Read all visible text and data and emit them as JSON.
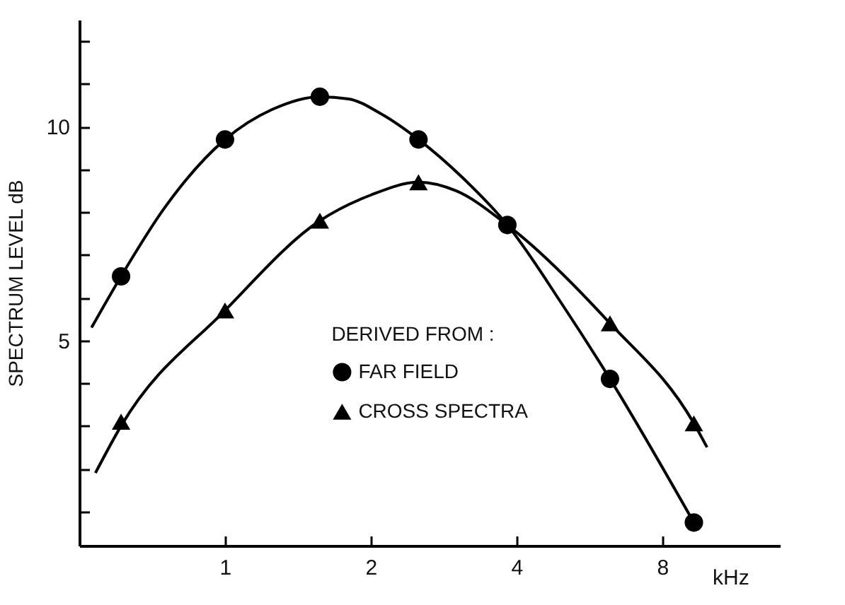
{
  "chart_data": {
    "type": "line",
    "xlabel": "kHz",
    "ylabel": "SPECTRUM LEVEL dB",
    "legend_title": "DERIVED FROM :",
    "legend": "bottom",
    "log": "x",
    "grid": false,
    "xlim": [
      0.5,
      14
    ],
    "xticks": [
      1,
      2,
      4,
      8
    ],
    "ylim": [
      0.2,
      12.5
    ],
    "yticks": [
      {
        "value": 1,
        "label": null
      },
      {
        "value": 2,
        "label": null
      },
      {
        "value": 3,
        "label": null
      },
      {
        "value": 4,
        "label": null
      },
      5,
      {
        "value": 6,
        "label": null
      },
      {
        "value": 7,
        "label": null
      },
      {
        "value": 8,
        "label": null
      },
      {
        "value": 9,
        "label": null
      },
      10,
      {
        "value": 11,
        "label": null
      },
      {
        "value": 12,
        "label": null
      }
    ],
    "series": [
      {
        "color": "#000000",
        "marker": "none",
        "x": [
          0.53,
          0.61,
          0.75,
          1,
          1.25,
          1.57,
          1.8,
          2.1,
          2.51,
          3.1,
          3.83,
          5,
          6.24,
          9.3
        ],
        "values": [
          5.3,
          6.5,
          8.1,
          9.7,
          10.4,
          10.7,
          10.65,
          10.3,
          9.7,
          8.8,
          7.7,
          5.8,
          4.1,
          0.74
        ]
      },
      {
        "color": "#000000",
        "marker": "none",
        "x": [
          0.54,
          0.61,
          1,
          1.57,
          2,
          2.51,
          3,
          3.83,
          6.24,
          9.3,
          9.9
        ],
        "values": [
          1.9,
          3.0,
          5.7,
          7.8,
          8.4,
          8.7,
          8.5,
          7.7,
          5.4,
          3.06,
          2.5
        ]
      },
      {
        "type": "scatter",
        "name": "FAR FIELD",
        "color": "#000000",
        "marker": "circle",
        "x": [
          0.61,
          1,
          1.57,
          2.51,
          3.83,
          6.24,
          9.3
        ],
        "values": [
          6.5,
          9.7,
          10.7,
          9.7,
          7.7,
          4.1,
          0.74
        ]
      },
      {
        "type": "scatter",
        "name": "CROSS SPECTRA",
        "color": "#000000",
        "marker": "triangle",
        "x": [
          0.61,
          1,
          1.57,
          2.51,
          3.83,
          6.24,
          9.3
        ],
        "values": [
          3.1,
          5.7,
          7.8,
          8.7,
          null,
          5.4,
          3.06
        ]
      }
    ]
  }
}
